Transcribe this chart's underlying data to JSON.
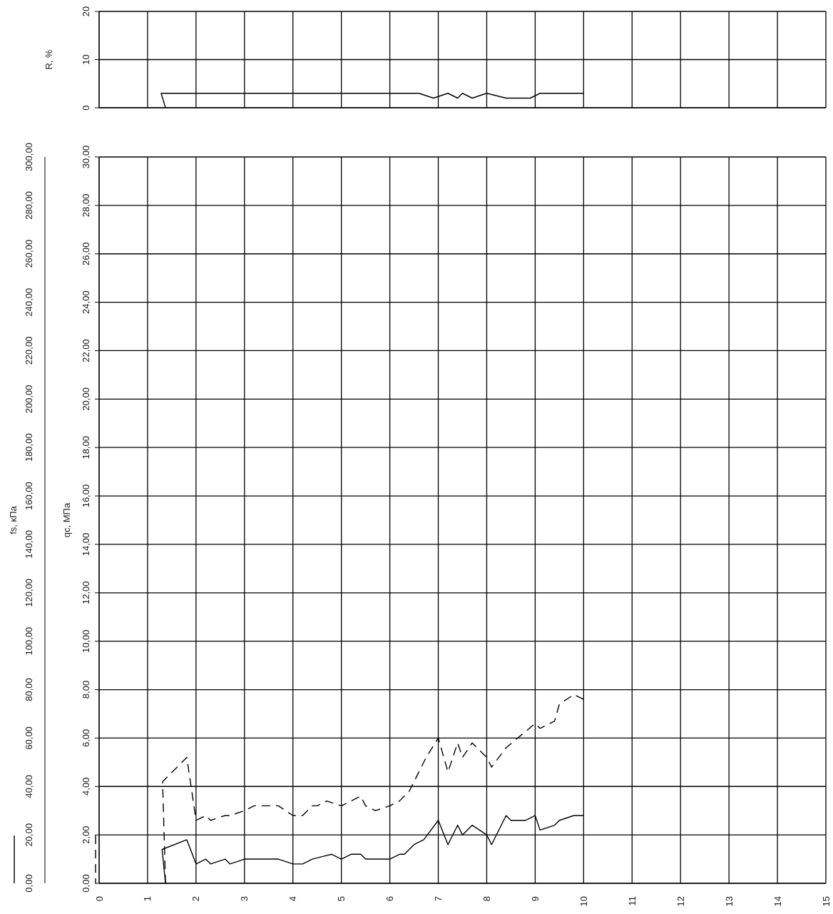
{
  "chart_data": [
    {
      "type": "line",
      "ylabel": "R, %",
      "xlim": [
        0,
        15
      ],
      "xticks": [
        0,
        1,
        2,
        3,
        4,
        5,
        6,
        7,
        8,
        9,
        10,
        11,
        12,
        13,
        14,
        15
      ],
      "ylim": [
        0,
        20
      ],
      "yticks": [
        0,
        10,
        20
      ],
      "grid": true,
      "tick_labels": "y",
      "marker": "none",
      "series": [
        {
          "color": "#000000",
          "line_style": "solid",
          "x": [
            1.37,
            1.28,
            6.6,
            6.9,
            7.2,
            7.4,
            7.5,
            7.7,
            8.0,
            8.4,
            8.9,
            9.1,
            10.0
          ],
          "values": [
            0,
            3,
            3,
            2,
            3,
            2,
            3,
            2,
            3,
            2,
            2,
            3,
            3
          ]
        }
      ]
    },
    {
      "type": "line",
      "ylabel": "qc, МПа",
      "y2label": "fs, кПа",
      "xlim": [
        0,
        15
      ],
      "xticks": [
        0,
        1,
        2,
        3,
        4,
        5,
        6,
        7,
        8,
        9,
        10,
        11,
        12,
        13,
        14,
        15
      ],
      "ylim": [
        0,
        30
      ],
      "yticks": [
        {
          "value": 0,
          "label": "0,00"
        },
        {
          "value": 2,
          "label": "2,00"
        },
        {
          "value": 4,
          "label": "4,00"
        },
        {
          "value": 6,
          "label": "6,00"
        },
        {
          "value": 8,
          "label": "8,00"
        },
        {
          "value": 10,
          "label": "10,00"
        },
        {
          "value": 12,
          "label": "12,00"
        },
        {
          "value": 14,
          "label": "14,00"
        },
        {
          "value": 16,
          "label": "16,00"
        },
        {
          "value": 18,
          "label": "18,00"
        },
        {
          "value": 20,
          "label": "20,00"
        },
        {
          "value": 22,
          "label": "22,00"
        },
        {
          "value": 24,
          "label": "24,00"
        },
        {
          "value": 26,
          "label": "26,00"
        },
        {
          "value": 28,
          "label": "28,00"
        },
        {
          "value": 30,
          "label": "30,00"
        }
      ],
      "y2lim": [
        0,
        300
      ],
      "y2ticks": [
        {
          "value": 0,
          "label": "0,00"
        },
        {
          "value": 20,
          "label": "20,00"
        },
        {
          "value": 40,
          "label": "40,00"
        },
        {
          "value": 60,
          "label": "60,00"
        },
        {
          "value": 80,
          "label": "80,00"
        },
        {
          "value": 100,
          "label": "100,00"
        },
        {
          "value": 120,
          "label": "120,00"
        },
        {
          "value": 140,
          "label": "140,00"
        },
        {
          "value": 160,
          "label": "160,00"
        },
        {
          "value": 180,
          "label": "180,00"
        },
        {
          "value": 200,
          "label": "200,00"
        },
        {
          "value": 220,
          "label": "220,00"
        },
        {
          "value": 240,
          "label": "240,00"
        },
        {
          "value": 260,
          "label": "260,00"
        },
        {
          "value": 280,
          "label": "280,00"
        },
        {
          "value": 300,
          "label": "300,00"
        }
      ],
      "grid": true,
      "marker": "none",
      "series": [
        {
          "color": "#000000",
          "line_style": "solid",
          "x": [
            1.37,
            1.3,
            1.81,
            2.0,
            2.2,
            2.3,
            2.6,
            2.7,
            3.0,
            3.7,
            4.0,
            4.2,
            4.4,
            4.6,
            4.8,
            5.0,
            5.2,
            5.4,
            5.5,
            6.0,
            6.2,
            6.3,
            6.5,
            6.7,
            7.0,
            7.2,
            7.4,
            7.5,
            7.7,
            8.0,
            8.1,
            8.4,
            8.5,
            8.8,
            9.0,
            9.1,
            9.4,
            9.5,
            9.8,
            10.0
          ],
          "values": [
            0,
            1.4,
            1.8,
            0.8,
            1.0,
            0.8,
            1.0,
            0.8,
            1.0,
            1.0,
            0.8,
            0.8,
            1.0,
            1.1,
            1.2,
            1.0,
            1.2,
            1.2,
            1.0,
            1.0,
            1.2,
            1.2,
            1.6,
            1.8,
            2.6,
            1.6,
            2.4,
            2.0,
            2.4,
            2.0,
            1.6,
            2.8,
            2.6,
            2.6,
            2.8,
            2.2,
            2.4,
            2.6,
            2.8,
            2.8
          ]
        },
        {
          "color": "#000000",
          "line_style": "dashed",
          "axis": "y2",
          "x": [
            1.37,
            1.31,
            1.81,
            2.0,
            2.2,
            2.3,
            2.6,
            2.7,
            3.0,
            3.2,
            3.7,
            4.0,
            4.2,
            4.4,
            4.5,
            4.7,
            5.0,
            5.4,
            5.5,
            5.7,
            6.0,
            6.2,
            6.4,
            6.6,
            6.75,
            7.0,
            7.2,
            7.4,
            7.5,
            7.7,
            7.9,
            8.0,
            8.1,
            8.4,
            9.0,
            9.1,
            9.4,
            9.5,
            9.8,
            10.0
          ],
          "values": [
            0,
            42,
            52,
            26,
            28,
            26,
            28,
            28,
            30,
            32,
            32,
            28,
            28,
            32,
            32,
            34,
            32,
            36,
            32,
            30,
            32,
            34,
            38,
            46,
            52,
            60,
            46,
            58,
            52,
            58,
            54,
            52,
            48,
            56,
            66,
            64,
            67,
            74,
            78,
            76
          ]
        }
      ]
    }
  ]
}
